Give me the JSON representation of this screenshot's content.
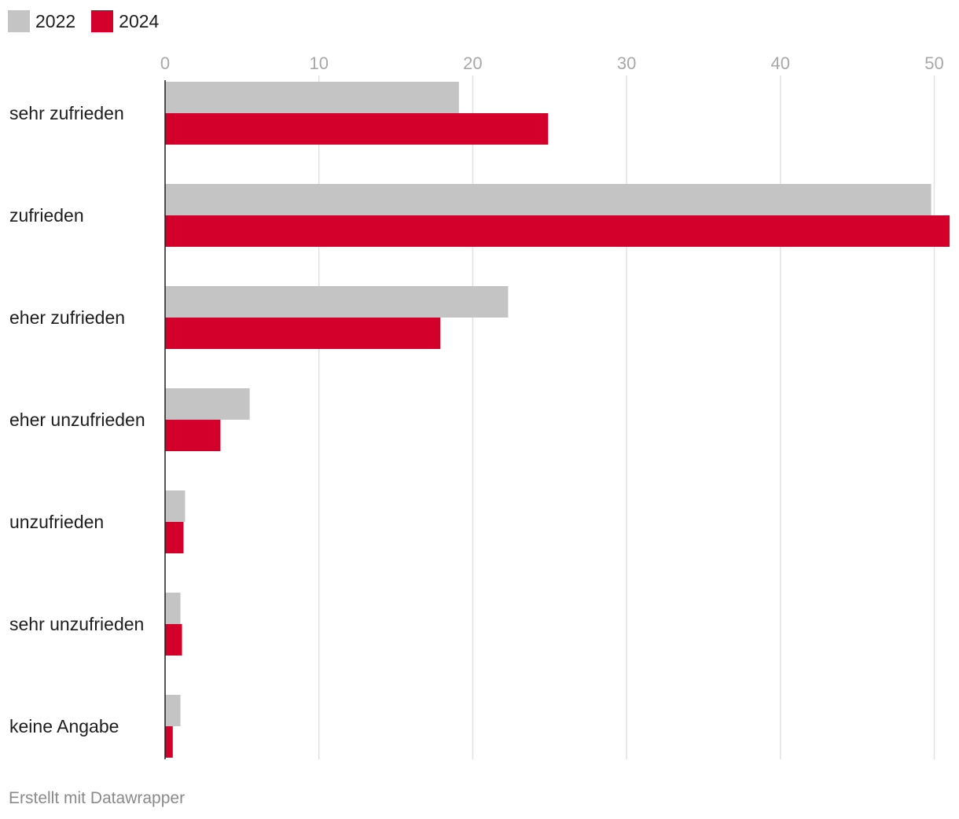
{
  "chart_data": {
    "type": "bar",
    "orientation": "horizontal",
    "categories": [
      "sehr zufrieden",
      "zufrieden",
      "eher zufrieden",
      "eher unzufrieden",
      "unzufrieden",
      "sehr unzufrieden",
      "keine Angabe"
    ],
    "series": [
      {
        "name": "2022",
        "color": "#c4c4c4",
        "values": [
          19.1,
          49.8,
          22.3,
          5.5,
          1.3,
          1.0,
          1.0
        ]
      },
      {
        "name": "2024",
        "color": "#d3002b",
        "values": [
          24.9,
          51.0,
          17.9,
          3.6,
          1.2,
          1.1,
          0.5
        ]
      }
    ],
    "xticks": [
      0,
      10,
      20,
      30,
      40,
      50
    ],
    "xlim": [
      0,
      51
    ],
    "grid": true,
    "legend": "top-left",
    "title": "",
    "xlabel": "",
    "ylabel": ""
  },
  "footer": {
    "credit": "Erstellt mit Datawrapper"
  }
}
